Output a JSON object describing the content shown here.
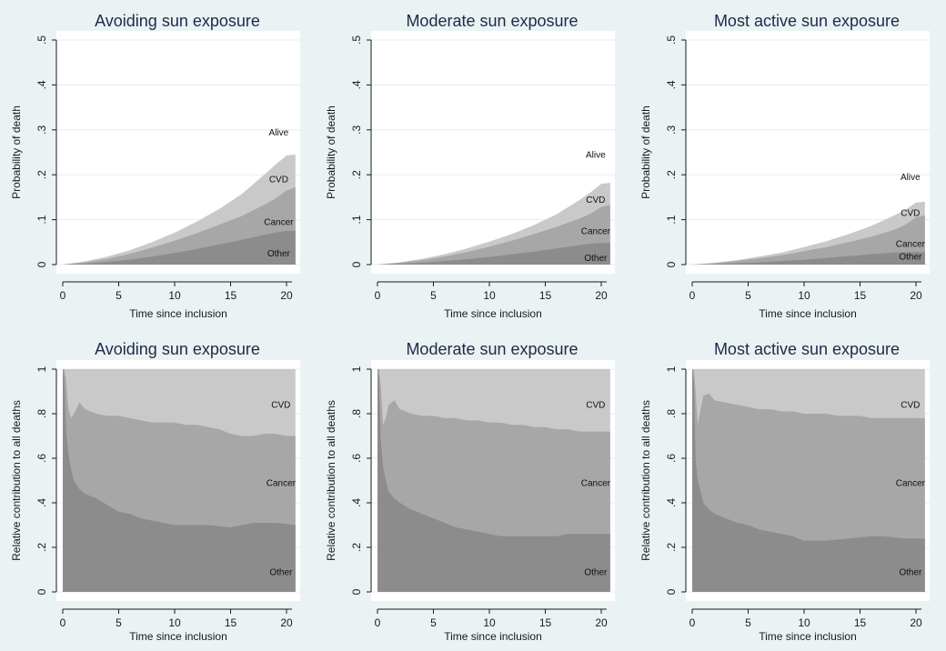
{
  "colors": {
    "background": "#eaf2f3",
    "plot_bg": "#ffffff",
    "grid": "#e6ecee",
    "axis": "#1a1a1a",
    "other": "#8c8c8c",
    "cancer": "#a7a7a7",
    "cvd": "#c9c9c9"
  },
  "chart_data": [
    {
      "type": "area",
      "title": "Avoiding sun exposure",
      "xlabel": "Time since inclusion",
      "ylabel": "Probability of death",
      "xlim": [
        0,
        21
      ],
      "ylim": [
        0,
        0.5
      ],
      "xticks": [
        "0",
        "5",
        "10",
        "15",
        "20"
      ],
      "yticks": [
        "0",
        ".1",
        ".2",
        ".3",
        ".4",
        ".5"
      ],
      "labels": [
        {
          "text": "Alive",
          "x": 19.3,
          "y": 0.295
        },
        {
          "text": "CVD",
          "x": 19.3,
          "y": 0.19
        },
        {
          "text": "Cancer",
          "x": 19.3,
          "y": 0.095
        },
        {
          "text": "Other",
          "x": 19.3,
          "y": 0.025
        }
      ],
      "x": [
        0,
        2,
        4,
        6,
        8,
        10,
        12,
        14,
        16,
        18,
        19,
        20,
        20.8
      ],
      "series": [
        {
          "name": "Other",
          "values": [
            0,
            0.002,
            0.006,
            0.011,
            0.018,
            0.026,
            0.035,
            0.045,
            0.055,
            0.066,
            0.071,
            0.075,
            0.075
          ]
        },
        {
          "name": "Cancer",
          "values": [
            0,
            0.005,
            0.013,
            0.024,
            0.038,
            0.053,
            0.07,
            0.089,
            0.108,
            0.133,
            0.147,
            0.165,
            0.172
          ]
        },
        {
          "name": "CVD",
          "values": [
            0,
            0.007,
            0.018,
            0.032,
            0.05,
            0.071,
            0.096,
            0.124,
            0.157,
            0.2,
            0.222,
            0.243,
            0.245
          ]
        }
      ]
    },
    {
      "type": "area",
      "title": "Moderate sun exposure",
      "xlabel": "Time since inclusion",
      "ylabel": "Probability of death",
      "xlim": [
        0,
        21
      ],
      "ylim": [
        0,
        0.5
      ],
      "xticks": [
        "0",
        "5",
        "10",
        "15",
        "20"
      ],
      "yticks": [
        "0",
        ".1",
        ".2",
        ".3",
        ".4",
        ".5"
      ],
      "labels": [
        {
          "text": "Alive",
          "x": 19.5,
          "y": 0.245
        },
        {
          "text": "CVD",
          "x": 19.5,
          "y": 0.145
        },
        {
          "text": "Cancer",
          "x": 19.5,
          "y": 0.075
        },
        {
          "text": "Other",
          "x": 19.5,
          "y": 0.015
        }
      ],
      "x": [
        0,
        2,
        4,
        6,
        8,
        10,
        12,
        14,
        16,
        18,
        19,
        20,
        20.8
      ],
      "series": [
        {
          "name": "Other",
          "values": [
            0,
            0.002,
            0.004,
            0.008,
            0.012,
            0.017,
            0.023,
            0.029,
            0.036,
            0.043,
            0.046,
            0.048,
            0.048
          ]
        },
        {
          "name": "Cancer",
          "values": [
            0,
            0.004,
            0.01,
            0.018,
            0.028,
            0.04,
            0.053,
            0.068,
            0.084,
            0.102,
            0.113,
            0.128,
            0.133
          ]
        },
        {
          "name": "CVD",
          "values": [
            0,
            0.005,
            0.013,
            0.023,
            0.036,
            0.051,
            0.068,
            0.088,
            0.112,
            0.143,
            0.16,
            0.18,
            0.182
          ]
        }
      ]
    },
    {
      "type": "area",
      "title": "Most active sun exposure",
      "xlabel": "Time since inclusion",
      "ylabel": "Probability of death",
      "xlim": [
        0,
        21
      ],
      "ylim": [
        0,
        0.5
      ],
      "xticks": [
        "0",
        "5",
        "10",
        "15",
        "20"
      ],
      "yticks": [
        "0",
        ".1",
        ".2",
        ".3",
        ".4",
        ".5"
      ],
      "labels": [
        {
          "text": "Alive",
          "x": 19.5,
          "y": 0.195
        },
        {
          "text": "CVD",
          "x": 19.5,
          "y": 0.115
        },
        {
          "text": "Cancer",
          "x": 19.5,
          "y": 0.047
        },
        {
          "text": "Other",
          "x": 19.5,
          "y": 0.018
        }
      ],
      "x": [
        0,
        2,
        4,
        6,
        8,
        10,
        12,
        14,
        16,
        18,
        19,
        20,
        20.8
      ],
      "series": [
        {
          "name": "Other",
          "values": [
            0,
            0.001,
            0.003,
            0.005,
            0.008,
            0.011,
            0.015,
            0.019,
            0.023,
            0.027,
            0.028,
            0.028,
            0.028
          ]
        },
        {
          "name": "Cancer",
          "values": [
            0,
            0.003,
            0.008,
            0.014,
            0.021,
            0.03,
            0.039,
            0.05,
            0.062,
            0.077,
            0.088,
            0.105,
            0.11
          ]
        },
        {
          "name": "CVD",
          "values": [
            0,
            0.004,
            0.01,
            0.018,
            0.027,
            0.039,
            0.052,
            0.068,
            0.086,
            0.109,
            0.121,
            0.138,
            0.14
          ]
        }
      ]
    },
    {
      "type": "area",
      "title": "Avoiding sun exposure",
      "xlabel": "Time since inclusion",
      "ylabel": "Relative contribution to all deaths",
      "xlim": [
        0,
        21
      ],
      "ylim": [
        0,
        1
      ],
      "xticks": [
        "0",
        "5",
        "10",
        "15",
        "20"
      ],
      "yticks": [
        "0",
        ".2",
        ".4",
        ".6",
        ".8",
        "1"
      ],
      "labels": [
        {
          "text": "CVD",
          "x": 19.5,
          "y": 0.84
        },
        {
          "text": "Cancer",
          "x": 19.5,
          "y": 0.49
        },
        {
          "text": "Other",
          "x": 19.5,
          "y": 0.09
        }
      ],
      "x": [
        0,
        0.15,
        0.3,
        0.5,
        0.75,
        1,
        1.5,
        2,
        3,
        4,
        5,
        6,
        7,
        8,
        9,
        10,
        11,
        12,
        13,
        14,
        15,
        16,
        17,
        18,
        19,
        20,
        20.8
      ],
      "series": [
        {
          "name": "Other",
          "values": [
            1,
            0.95,
            0.72,
            0.62,
            0.55,
            0.5,
            0.46,
            0.44,
            0.42,
            0.39,
            0.36,
            0.35,
            0.33,
            0.32,
            0.31,
            0.3,
            0.3,
            0.3,
            0.3,
            0.295,
            0.29,
            0.3,
            0.31,
            0.31,
            0.31,
            0.305,
            0.3
          ]
        },
        {
          "name": "Cancer",
          "values": [
            1,
            1,
            0.95,
            0.82,
            0.78,
            0.8,
            0.85,
            0.82,
            0.8,
            0.79,
            0.79,
            0.78,
            0.77,
            0.76,
            0.76,
            0.76,
            0.75,
            0.75,
            0.74,
            0.73,
            0.71,
            0.7,
            0.7,
            0.71,
            0.71,
            0.7,
            0.7
          ]
        },
        {
          "name": "CVD",
          "values": [
            1,
            1,
            1,
            1,
            1,
            1,
            1,
            1,
            1,
            1,
            1,
            1,
            1,
            1,
            1,
            1,
            1,
            1,
            1,
            1,
            1,
            1,
            1,
            1,
            1,
            1,
            1
          ]
        }
      ]
    },
    {
      "type": "area",
      "title": "Moderate sun exposure",
      "xlabel": "Time since inclusion",
      "ylabel": "Relative contribution to all deaths",
      "xlim": [
        0,
        21
      ],
      "ylim": [
        0,
        1
      ],
      "xticks": [
        "0",
        "5",
        "10",
        "15",
        "20"
      ],
      "yticks": [
        "0",
        ".2",
        ".4",
        ".6",
        ".8",
        "1"
      ],
      "labels": [
        {
          "text": "CVD",
          "x": 19.5,
          "y": 0.84
        },
        {
          "text": "Cancer",
          "x": 19.5,
          "y": 0.49
        },
        {
          "text": "Other",
          "x": 19.5,
          "y": 0.09
        }
      ],
      "x": [
        0,
        0.15,
        0.3,
        0.5,
        0.75,
        1,
        1.5,
        2,
        3,
        4,
        5,
        6,
        7,
        8,
        9,
        10,
        11,
        12,
        13,
        14,
        15,
        16,
        17,
        18,
        19,
        20,
        20.8
      ],
      "series": [
        {
          "name": "Other",
          "values": [
            1,
            0.95,
            0.68,
            0.56,
            0.5,
            0.45,
            0.42,
            0.4,
            0.37,
            0.35,
            0.33,
            0.31,
            0.29,
            0.28,
            0.27,
            0.26,
            0.25,
            0.25,
            0.25,
            0.25,
            0.25,
            0.25,
            0.26,
            0.26,
            0.26,
            0.26,
            0.26
          ]
        },
        {
          "name": "Cancer",
          "values": [
            1,
            1,
            0.92,
            0.75,
            0.78,
            0.84,
            0.86,
            0.82,
            0.8,
            0.79,
            0.79,
            0.78,
            0.78,
            0.77,
            0.77,
            0.76,
            0.76,
            0.75,
            0.75,
            0.74,
            0.74,
            0.73,
            0.73,
            0.72,
            0.72,
            0.72,
            0.72
          ]
        },
        {
          "name": "CVD",
          "values": [
            1,
            1,
            1,
            1,
            1,
            1,
            1,
            1,
            1,
            1,
            1,
            1,
            1,
            1,
            1,
            1,
            1,
            1,
            1,
            1,
            1,
            1,
            1,
            1,
            1,
            1,
            1
          ]
        }
      ]
    },
    {
      "type": "area",
      "title": "Most active sun exposure",
      "xlabel": "Time since inclusion",
      "ylabel": "Relative contribution to all deaths",
      "xlim": [
        0,
        21
      ],
      "ylim": [
        0,
        1
      ],
      "xticks": [
        "0",
        "5",
        "10",
        "15",
        "20"
      ],
      "yticks": [
        "0",
        ".2",
        ".4",
        ".6",
        ".8",
        "1"
      ],
      "labels": [
        {
          "text": "CVD",
          "x": 19.5,
          "y": 0.84
        },
        {
          "text": "Cancer",
          "x": 19.5,
          "y": 0.49
        },
        {
          "text": "Other",
          "x": 19.5,
          "y": 0.09
        }
      ],
      "x": [
        0,
        0.15,
        0.3,
        0.5,
        0.75,
        1,
        1.5,
        2,
        3,
        4,
        5,
        6,
        7,
        8,
        9,
        10,
        11,
        12,
        13,
        14,
        15,
        16,
        17,
        18,
        19,
        20,
        20.8
      ],
      "series": [
        {
          "name": "Other",
          "values": [
            1,
            0.95,
            0.6,
            0.5,
            0.45,
            0.4,
            0.37,
            0.35,
            0.33,
            0.31,
            0.3,
            0.28,
            0.27,
            0.26,
            0.25,
            0.23,
            0.23,
            0.23,
            0.235,
            0.24,
            0.245,
            0.25,
            0.25,
            0.245,
            0.24,
            0.24,
            0.24
          ]
        },
        {
          "name": "Cancer",
          "values": [
            1,
            1,
            0.9,
            0.75,
            0.82,
            0.88,
            0.89,
            0.86,
            0.85,
            0.84,
            0.83,
            0.82,
            0.82,
            0.81,
            0.81,
            0.8,
            0.8,
            0.8,
            0.79,
            0.79,
            0.79,
            0.78,
            0.78,
            0.78,
            0.78,
            0.78,
            0.78
          ]
        },
        {
          "name": "CVD",
          "values": [
            1,
            1,
            1,
            1,
            1,
            1,
            1,
            1,
            1,
            1,
            1,
            1,
            1,
            1,
            1,
            1,
            1,
            1,
            1,
            1,
            1,
            1,
            1,
            1,
            1,
            1,
            1
          ]
        }
      ]
    }
  ]
}
